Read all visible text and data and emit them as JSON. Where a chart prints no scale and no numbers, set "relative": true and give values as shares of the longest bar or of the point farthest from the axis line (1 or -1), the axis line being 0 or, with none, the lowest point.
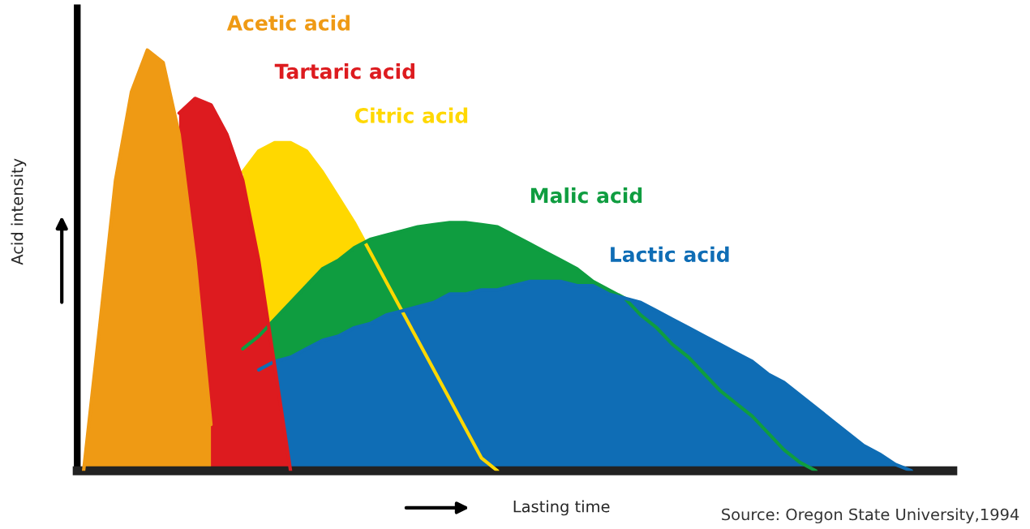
{
  "chart_data": {
    "type": "area",
    "relative": true,
    "xlabel": "Lasting time",
    "ylabel": "Acid intensity",
    "annotations": [
      "Source: Oregon State University,1994"
    ],
    "categories": [
      null,
      null,
      null,
      null,
      null,
      null,
      null,
      null,
      null,
      null,
      null,
      null,
      null,
      null,
      null,
      null,
      null,
      null,
      null,
      null,
      null,
      null,
      null,
      null,
      null,
      null,
      null,
      null,
      null,
      null,
      null,
      null,
      null,
      null,
      null,
      null,
      null,
      null,
      null,
      null,
      null,
      null,
      null,
      null,
      null,
      null,
      null,
      null,
      null,
      null,
      null,
      null,
      null,
      null
    ],
    "series": [
      {
        "name": "Citric acid",
        "color": "#ffd800",
        "values": [
          null,
          null,
          null,
          null,
          null,
          null,
          null,
          null,
          null,
          null,
          0.71,
          0.76,
          0.78,
          0.78,
          0.76,
          0.71,
          0.65,
          0.59,
          0.52,
          0.45,
          0.38,
          0.31,
          0.24,
          0.17,
          0.1,
          0.03,
          0,
          null,
          null,
          null,
          null,
          null,
          null,
          null,
          null,
          null,
          null,
          null,
          null,
          null,
          null,
          null,
          null,
          null,
          null,
          null,
          null,
          null,
          null,
          null,
          null,
          null,
          null,
          null
        ]
      },
      {
        "name": "Malic acid",
        "color": "#0f9d40",
        "values": [
          null,
          null,
          null,
          null,
          null,
          null,
          null,
          null,
          null,
          null,
          0.29,
          0.32,
          0.36,
          0.4,
          0.44,
          0.48,
          0.5,
          0.53,
          0.55,
          0.56,
          0.57,
          0.58,
          0.585,
          0.59,
          0.59,
          0.585,
          0.58,
          0.56,
          0.54,
          0.52,
          0.5,
          0.48,
          0.45,
          0.43,
          0.41,
          0.37,
          0.34,
          0.3,
          0.27,
          0.23,
          0.19,
          0.16,
          0.13,
          0.09,
          0.05,
          0.02,
          0,
          null,
          null,
          null,
          null,
          null,
          null,
          null
        ]
      },
      {
        "name": "Lactic acid",
        "color": "#0f6db5",
        "values": [
          null,
          null,
          null,
          null,
          null,
          null,
          null,
          null,
          null,
          null,
          null,
          0.24,
          0.26,
          0.27,
          0.29,
          0.31,
          0.32,
          0.34,
          0.35,
          0.37,
          0.38,
          0.39,
          0.4,
          0.42,
          0.42,
          0.43,
          0.43,
          0.44,
          0.45,
          0.45,
          0.45,
          0.44,
          0.44,
          0.42,
          0.41,
          0.4,
          0.38,
          0.36,
          0.34,
          0.32,
          0.3,
          0.28,
          0.26,
          0.23,
          0.21,
          0.18,
          0.15,
          0.12,
          0.09,
          0.06,
          0.04,
          0.015,
          0,
          null
        ]
      },
      {
        "name": "Tartaric acid",
        "color": "#dd1b1f",
        "values": [
          null,
          null,
          null,
          null,
          null,
          null,
          0.85,
          0.885,
          0.87,
          0.8,
          0.69,
          0.5,
          0.25,
          0,
          null,
          null,
          null,
          null,
          null,
          null,
          null,
          null,
          null,
          null,
          null,
          null,
          null,
          null,
          null,
          null,
          null,
          null,
          null,
          null,
          null,
          null,
          null,
          null,
          null,
          null,
          null,
          null,
          null,
          null,
          null,
          null,
          null,
          null,
          null,
          null,
          null,
          null,
          null,
          null
        ]
      },
      {
        "name": "Acetic acid",
        "color": "#ef9a14",
        "values": [
          0,
          0.34,
          0.69,
          0.9,
          1,
          0.97,
          0.8,
          0.5,
          0.11,
          null,
          null,
          null,
          null,
          null,
          null,
          null,
          null,
          null,
          null,
          null,
          null,
          null,
          null,
          null,
          null,
          null,
          null,
          null,
          null,
          null,
          null,
          null,
          null,
          null,
          null,
          null,
          null,
          null,
          null,
          null,
          null,
          null,
          null,
          null,
          null,
          null,
          null,
          null,
          null,
          null,
          null,
          null,
          null,
          null
        ]
      }
    ]
  }
}
